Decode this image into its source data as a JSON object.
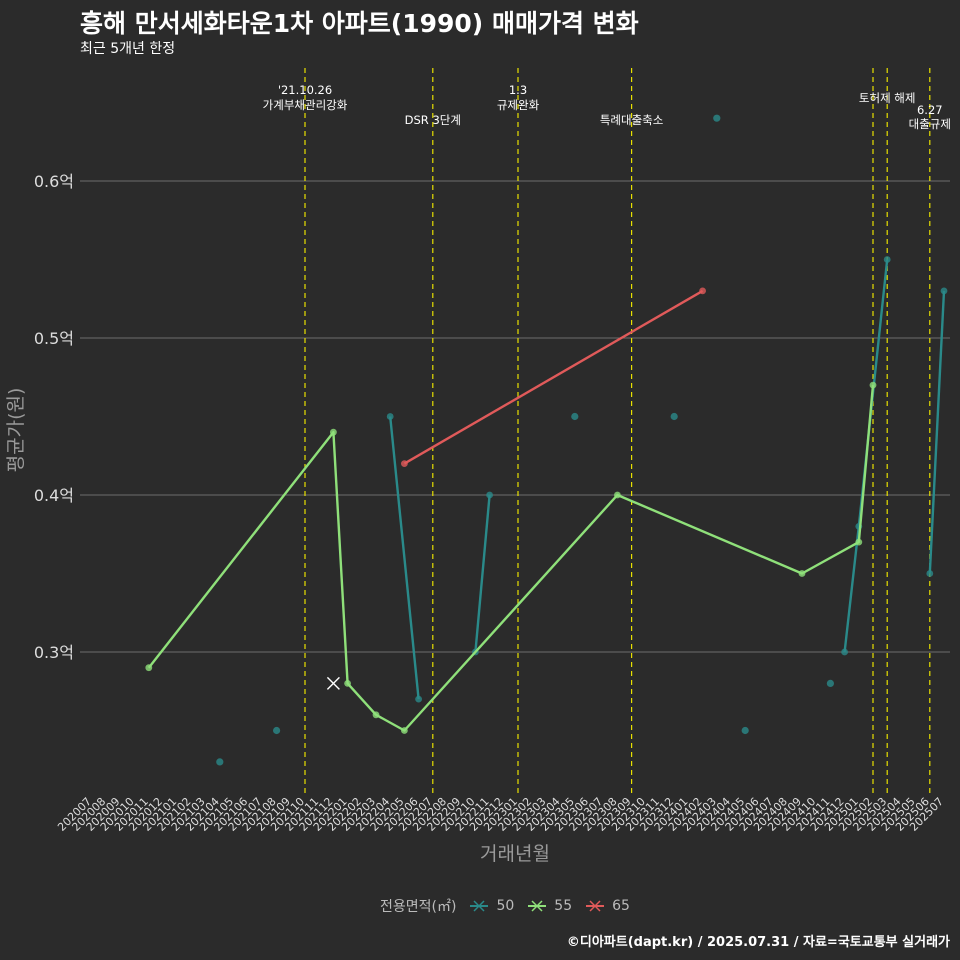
{
  "header": {
    "title": "흥해 만서세화타운1차 아파트(1990) 매매가격 변화",
    "subtitle": "최근 5개년 한정"
  },
  "caption": "©디아파트(dapt.kr) / 2025.07.31 / 자료=국토교통부 실거래가",
  "colors": {
    "background": "#2b2b2b",
    "grid": "#6e6e6e",
    "event_line": "#e8e000",
    "s50": "#2a8a8a",
    "s55": "#8fe07a",
    "s65": "#e05a5a"
  },
  "chart_data": {
    "type": "line",
    "title": "흥해 만서세화타운1차 아파트(1990) 매매가격 변화",
    "xlabel": "거래년월",
    "ylabel": "평균가(원)",
    "ylim": [
      0.21,
      0.66
    ],
    "yticks": [
      0.3,
      0.4,
      0.5,
      0.6
    ],
    "ytick_labels": [
      "0.3억",
      "0.4억",
      "0.5억",
      "0.6억"
    ],
    "grid": true,
    "legend": {
      "title": "전용면적(㎡)",
      "position": "bottom"
    },
    "x_categories": [
      "202007",
      "202008",
      "202009",
      "202010",
      "202011",
      "202012",
      "202101",
      "202102",
      "202103",
      "202104",
      "202105",
      "202106",
      "202107",
      "202108",
      "202109",
      "202110",
      "202111",
      "202112",
      "202201",
      "202202",
      "202203",
      "202204",
      "202205",
      "202206",
      "202207",
      "202208",
      "202209",
      "202210",
      "202211",
      "202212",
      "202301",
      "202302",
      "202303",
      "202304",
      "202305",
      "202306",
      "202307",
      "202308",
      "202309",
      "202310",
      "202311",
      "202312",
      "202401",
      "202402",
      "202403",
      "202404",
      "202405",
      "202406",
      "202407",
      "202408",
      "202409",
      "202410",
      "202411",
      "202412",
      "202501",
      "202502",
      "202503",
      "202504",
      "202505",
      "202506",
      "202507"
    ],
    "series": [
      {
        "name": "50",
        "color": "#2a8a8a",
        "lines": [
          [
            [
              "202204",
              0.45
            ],
            [
              "202206",
              0.27
            ]
          ],
          [
            [
              "202210",
              0.3
            ],
            [
              "202211",
              0.4
            ]
          ],
          [
            [
              "202412",
              0.3
            ],
            [
              "202501",
              0.38
            ],
            [
              "202503",
              0.55
            ]
          ],
          [
            [
              "202506",
              0.35
            ],
            [
              "202507",
              0.53
            ]
          ]
        ],
        "points": [
          [
            "202104",
            0.23
          ],
          [
            "202108",
            0.25
          ],
          [
            "202305",
            0.45
          ],
          [
            "202312",
            0.45
          ],
          [
            "202403",
            0.64
          ],
          [
            "202405",
            0.25
          ],
          [
            "202411",
            0.28
          ]
        ]
      },
      {
        "name": "55",
        "color": "#8fe07a",
        "lines": [
          [
            [
              "202011",
              0.29
            ],
            [
              "202112",
              0.44
            ],
            [
              "202201",
              0.28
            ],
            [
              "202203",
              0.26
            ],
            [
              "202205",
              0.25
            ],
            [
              "202308",
              0.4
            ],
            [
              "202409",
              0.35
            ],
            [
              "202501",
              0.37
            ],
            [
              "202502",
              0.47
            ]
          ]
        ],
        "points": [],
        "cancelled": [
          [
            "202112",
            0.28
          ]
        ]
      },
      {
        "name": "65",
        "color": "#e05a5a",
        "lines": [
          [
            [
              "202205",
              0.42
            ],
            [
              "202402",
              0.53
            ]
          ]
        ],
        "points": []
      }
    ],
    "events": [
      {
        "x": 202110,
        "label_lines": [
          "'21.10.26",
          "가계부채관리강화"
        ],
        "level": 0
      },
      {
        "x": 202207,
        "label_lines": [
          "DSR 3단계"
        ],
        "level": 2
      },
      {
        "x": 202301,
        "label_lines": [
          "1.3",
          "규제완화"
        ],
        "level": 0
      },
      {
        "x": 202309,
        "label_lines": [
          "특례대출축소"
        ],
        "level": 2
      },
      {
        "x": 202502,
        "label_lines": [],
        "level": 1
      },
      {
        "x": 202503,
        "label_lines": [
          "토허제 해제"
        ],
        "level": 1
      },
      {
        "x": 202506,
        "label_lines": [
          "6.27",
          "대출규제"
        ],
        "level": 1
      }
    ]
  }
}
